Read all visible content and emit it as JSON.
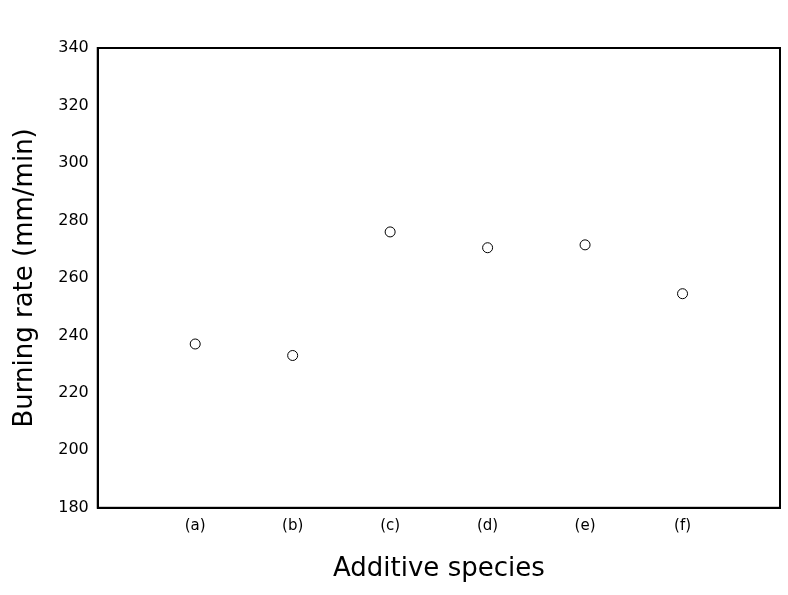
{
  "chart_data": {
    "type": "scatter",
    "x_label": "Additive species",
    "y_label": "Burning rate (mm/min)",
    "categories": [
      "(a)",
      "(b)",
      "(c)",
      "(d)",
      "(e)",
      "(f)"
    ],
    "values": [
      237,
      233,
      276,
      270.5,
      271.5,
      254.5
    ],
    "color": "#000000",
    "marker": "circle",
    "ylim": [
      180,
      340
    ],
    "yticks": [
      180,
      200,
      220,
      240,
      260,
      280,
      300,
      320,
      340
    ],
    "grid": false
  }
}
